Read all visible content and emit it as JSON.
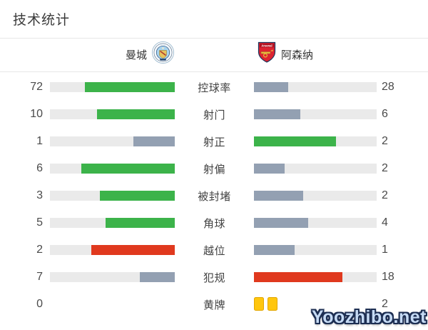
{
  "page": {
    "title": "技术统计",
    "watermark": "Yoozhibo.net"
  },
  "teams": {
    "home": {
      "name": "曼城",
      "badge_icon": "manchester-city-crest"
    },
    "away": {
      "name": "阿森纳",
      "badge_icon": "arsenal-crest"
    }
  },
  "palette": {
    "green": "#3cb34a",
    "slate": "#93a0b2",
    "red": "#e0391e",
    "track": "#eaeaea",
    "card_yellow": "#ffc60d",
    "divider": "#e7e7e7"
  },
  "stats": [
    {
      "label": "控球率",
      "type": "bar",
      "home": {
        "value": 72,
        "color": "green"
      },
      "away": {
        "value": 28,
        "color": "slate"
      }
    },
    {
      "label": "射门",
      "type": "bar",
      "home": {
        "value": 10,
        "color": "green"
      },
      "away": {
        "value": 6,
        "color": "slate"
      }
    },
    {
      "label": "射正",
      "type": "bar",
      "home": {
        "value": 1,
        "color": "slate"
      },
      "away": {
        "value": 2,
        "color": "green"
      }
    },
    {
      "label": "射偏",
      "type": "bar",
      "home": {
        "value": 6,
        "color": "green"
      },
      "away": {
        "value": 2,
        "color": "slate"
      }
    },
    {
      "label": "被封堵",
      "type": "bar",
      "home": {
        "value": 3,
        "color": "green"
      },
      "away": {
        "value": 2,
        "color": "slate"
      }
    },
    {
      "label": "角球",
      "type": "bar",
      "home": {
        "value": 5,
        "color": "green"
      },
      "away": {
        "value": 4,
        "color": "slate"
      }
    },
    {
      "label": "越位",
      "type": "bar",
      "home": {
        "value": 2,
        "color": "red"
      },
      "away": {
        "value": 1,
        "color": "slate"
      }
    },
    {
      "label": "犯规",
      "type": "bar",
      "home": {
        "value": 7,
        "color": "slate"
      },
      "away": {
        "value": 18,
        "color": "red"
      }
    },
    {
      "label": "黄牌",
      "type": "cards",
      "home": {
        "value": 0,
        "color": "none"
      },
      "away": {
        "value": 2,
        "color": "yellow"
      }
    }
  ],
  "chart_data": {
    "type": "bar",
    "variant": "paired-horizontal-stat-comparison",
    "title": "技术统计",
    "categories": [
      "控球率",
      "射门",
      "射正",
      "射偏",
      "被封堵",
      "角球",
      "越位",
      "犯规",
      "黄牌"
    ],
    "series": [
      {
        "name": "曼城",
        "values": [
          72,
          10,
          1,
          6,
          3,
          5,
          2,
          7,
          0
        ]
      },
      {
        "name": "阿森纳",
        "values": [
          28,
          6,
          2,
          2,
          2,
          4,
          1,
          18,
          2
        ]
      }
    ],
    "notes": "Each bar fill = value / (home+away); winner bar green, loser slate; negative stats (越位, 犯规) winner shown red; 黄牌 row rendered as yellow card icons instead of bars"
  }
}
